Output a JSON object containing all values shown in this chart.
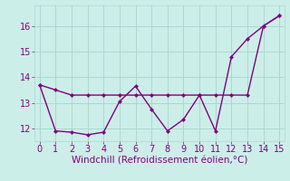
{
  "line1_x": [
    0,
    1,
    2,
    3,
    4,
    5,
    6,
    7,
    8,
    9,
    10,
    11,
    12,
    13,
    14,
    15
  ],
  "line1_y": [
    13.7,
    13.5,
    13.3,
    13.3,
    13.3,
    13.3,
    13.3,
    13.3,
    13.3,
    13.3,
    13.3,
    13.3,
    13.3,
    13.3,
    16.0,
    16.4
  ],
  "line2_x": [
    0,
    1,
    2,
    3,
    4,
    5,
    6,
    7,
    8,
    9,
    10,
    11,
    12,
    13,
    14,
    15
  ],
  "line2_y": [
    13.7,
    11.9,
    11.85,
    11.75,
    11.85,
    13.05,
    13.65,
    12.75,
    11.9,
    12.35,
    13.3,
    11.9,
    14.8,
    15.5,
    16.0,
    16.4
  ],
  "line_color": "#800080",
  "bg_color": "#cceee8",
  "grid_color": "#aad8d0",
  "xlabel": "Windchill (Refroidissement éolien,°C)",
  "xlim": [
    -0.3,
    15.3
  ],
  "ylim": [
    11.5,
    16.8
  ],
  "xticks": [
    0,
    1,
    2,
    3,
    4,
    5,
    6,
    7,
    8,
    9,
    10,
    11,
    12,
    13,
    14,
    15
  ],
  "yticks": [
    12,
    13,
    14,
    15,
    16
  ],
  "marker": "D",
  "markersize": 2.5,
  "linewidth": 1.0,
  "xlabel_fontsize": 7.5,
  "tick_fontsize": 7
}
